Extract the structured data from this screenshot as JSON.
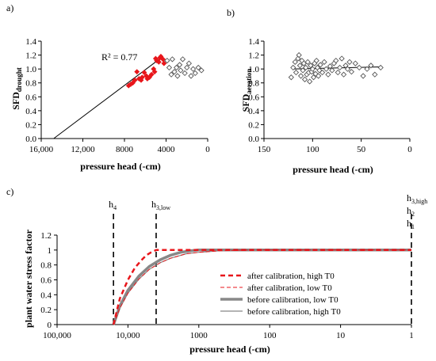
{
  "chart_data": [
    {
      "panel": "a)",
      "type": "scatter",
      "ylabel_main": "SFD",
      "ylabel_sub": "drought",
      "xlabel": "pressure head (-cm)",
      "x_reversed": true,
      "xlim": [
        0,
        16000
      ],
      "ylim": [
        0,
        1.4
      ],
      "x_ticks": [
        16000,
        12000,
        8000,
        4000,
        0
      ],
      "x_tick_labels": [
        "16,000",
        "12,000",
        "8000",
        "4000",
        "0"
      ],
      "y_ticks": [
        0,
        0.2,
        0.4,
        0.6,
        0.8,
        1.0,
        1.2,
        1.4
      ],
      "y_tick_labels": [
        "0.0",
        "0.2",
        "0.4",
        "0.6",
        "0.8",
        "1.0",
        "1.2",
        "1.4"
      ],
      "annotation": "R² = 0.77",
      "fit_line": {
        "x": [
          14800,
          4300
        ],
        "y": [
          0,
          1.18
        ],
        "color": "#000000"
      },
      "series": [
        {
          "marker": "filled-diamond",
          "color": "#e8161b",
          "points": [
            [
              7600,
              0.76
            ],
            [
              7400,
              0.78
            ],
            [
              7200,
              0.8
            ],
            [
              7000,
              0.84
            ],
            [
              6800,
              0.96
            ],
            [
              6600,
              0.86
            ],
            [
              6400,
              0.84
            ],
            [
              6300,
              0.88
            ],
            [
              6100,
              0.95
            ],
            [
              5900,
              0.9
            ],
            [
              5800,
              0.86
            ],
            [
              5600,
              0.88
            ],
            [
              5400,
              0.92
            ],
            [
              5200,
              1.0
            ],
            [
              5100,
              0.96
            ],
            [
              5000,
              1.15
            ],
            [
              4900,
              1.12
            ],
            [
              4700,
              1.1
            ],
            [
              4600,
              1.16
            ],
            [
              4500,
              1.18
            ],
            [
              4300,
              1.14
            ],
            [
              4200,
              1.08
            ]
          ]
        },
        {
          "marker": "open-diamond",
          "color": "#555555",
          "points": [
            [
              3900,
              1.12
            ],
            [
              3700,
              1.02
            ],
            [
              3500,
              0.92
            ],
            [
              3400,
              1.14
            ],
            [
              3200,
              0.96
            ],
            [
              3000,
              1.02
            ],
            [
              2900,
              0.9
            ],
            [
              2700,
              1.06
            ],
            [
              2600,
              0.98
            ],
            [
              2400,
              1.14
            ],
            [
              2200,
              0.94
            ],
            [
              2000,
              1.02
            ],
            [
              1800,
              1.08
            ],
            [
              1600,
              0.9
            ],
            [
              1400,
              1.0
            ],
            [
              1200,
              0.94
            ],
            [
              900,
              1.02
            ],
            [
              600,
              0.98
            ]
          ]
        }
      ]
    },
    {
      "panel": "b)",
      "type": "scatter",
      "ylabel_main": "SFD",
      "ylabel_sub": "aeration",
      "xlabel": "pressure head (-cm)",
      "x_reversed": true,
      "xlim": [
        0,
        150
      ],
      "ylim": [
        0,
        1.4
      ],
      "x_ticks": [
        150,
        100,
        50,
        0
      ],
      "x_tick_labels": [
        "150",
        "100",
        "50",
        "0"
      ],
      "y_ticks": [
        0,
        0.2,
        0.4,
        0.6,
        0.8,
        1.0,
        1.2,
        1.4
      ],
      "y_tick_labels": [
        "0.0",
        "0.2",
        "0.4",
        "0.6",
        "0.8",
        "1.0",
        "1.2",
        "1.4"
      ],
      "fit_line": {
        "x": [
          120,
          30
        ],
        "y": [
          1.0,
          1.03
        ],
        "color": "#000000"
      },
      "series": [
        {
          "marker": "open-diamond",
          "color": "#555555",
          "points": [
            [
              122,
              0.88
            ],
            [
              120,
              1.02
            ],
            [
              118,
              1.1
            ],
            [
              117,
              0.95
            ],
            [
              115,
              1.15
            ],
            [
              114,
              1.2
            ],
            [
              113,
              1.05
            ],
            [
              112,
              0.9
            ],
            [
              111,
              1.12
            ],
            [
              110,
              0.98
            ],
            [
              109,
              1.08
            ],
            [
              108,
              0.85
            ],
            [
              107,
              1.02
            ],
            [
              106,
              0.92
            ],
            [
              105,
              1.1
            ],
            [
              104,
              0.95
            ],
            [
              103,
              0.82
            ],
            [
              102,
              1.05
            ],
            [
              101,
              0.96
            ],
            [
              100,
              1.0
            ],
            [
              99,
              0.88
            ],
            [
              98,
              1.08
            ],
            [
              97,
              0.93
            ],
            [
              96,
              1.12
            ],
            [
              95,
              1.02
            ],
            [
              94,
              0.9
            ],
            [
              93,
              0.98
            ],
            [
              92,
              1.06
            ],
            [
              90,
              0.95
            ],
            [
              88,
              1.1
            ],
            [
              86,
              1.0
            ],
            [
              84,
              0.92
            ],
            [
              82,
              1.04
            ],
            [
              80,
              0.98
            ],
            [
              78,
              1.08
            ],
            [
              76,
              1.12
            ],
            [
              74,
              0.95
            ],
            [
              72,
              1.02
            ],
            [
              70,
              1.15
            ],
            [
              68,
              0.92
            ],
            [
              66,
              1.05
            ],
            [
              64,
              1.0
            ],
            [
              62,
              1.1
            ],
            [
              60,
              0.96
            ],
            [
              56,
              1.08
            ],
            [
              52,
              1.02
            ],
            [
              48,
              0.9
            ],
            [
              44,
              1.0
            ],
            [
              40,
              1.05
            ],
            [
              36,
              0.92
            ],
            [
              30,
              1.02
            ]
          ]
        }
      ]
    },
    {
      "panel": "c)",
      "type": "line",
      "ylabel": "plant water stress factor",
      "xlabel": "pressure head (-cm)",
      "x_scale": "log",
      "x_reversed": true,
      "xlim": [
        1,
        100000
      ],
      "ylim": [
        0,
        1.2
      ],
      "x_ticks": [
        100000,
        10000,
        1000,
        100,
        10,
        1
      ],
      "x_tick_labels": [
        "100,000",
        "10,000",
        "1000",
        "100",
        "10",
        "1"
      ],
      "y_ticks": [
        0,
        0.2,
        0.4,
        0.6,
        0.8,
        1.0,
        1.2
      ],
      "y_tick_labels": [
        "0",
        "0.2",
        "0.4",
        "0.6",
        "0.8",
        "1",
        "1.2"
      ],
      "vlines": [
        {
          "x": 16000,
          "label": "h",
          "sub": "4"
        },
        {
          "x": 4000,
          "label": "h",
          "sub": "3,low"
        },
        {
          "x": 1,
          "label_lines": [
            [
              "h",
              "3,high"
            ],
            [
              "h",
              "2"
            ],
            [
              "h",
              "1"
            ]
          ]
        }
      ],
      "legend_position": "center-right",
      "series": [
        {
          "name": "after calibration, high T0",
          "color": "#e8161b",
          "width": 2.5,
          "dash": "6,4",
          "x": [
            16000,
            13000,
            10000,
            8000,
            6500,
            5500,
            4700,
            4000,
            1
          ],
          "y": [
            0,
            0.35,
            0.6,
            0.76,
            0.86,
            0.93,
            0.97,
            1.0,
            1.0
          ]
        },
        {
          "name": "after calibration, low T0",
          "color": "#e8161b",
          "width": 1,
          "dash": "5,3",
          "x": [
            16000,
            13000,
            10000,
            7000,
            5000,
            3500,
            2500,
            1500,
            1000,
            500,
            200,
            1
          ],
          "y": [
            0,
            0.22,
            0.42,
            0.61,
            0.74,
            0.83,
            0.89,
            0.95,
            0.97,
            0.99,
            1.0,
            1.0
          ]
        },
        {
          "name": "before calibration, low T0",
          "color": "#888888",
          "width": 3.5,
          "dash": "",
          "x": [
            16000,
            13000,
            10000,
            7000,
            5000,
            3500,
            2500,
            1800,
            1300,
            1000,
            1
          ],
          "y": [
            0,
            0.25,
            0.46,
            0.65,
            0.78,
            0.87,
            0.93,
            0.97,
            0.99,
            1.0,
            1.0
          ]
        },
        {
          "name": "before calibration, high T0",
          "color": "#888888",
          "width": 1.2,
          "dash": "",
          "x": [
            16000,
            13000,
            10000,
            7000,
            5000,
            3500,
            2500,
            1500,
            1000,
            500,
            200,
            1
          ],
          "y": [
            0,
            0.22,
            0.42,
            0.61,
            0.74,
            0.83,
            0.89,
            0.95,
            0.97,
            0.99,
            1.0,
            1.0
          ]
        }
      ]
    }
  ]
}
